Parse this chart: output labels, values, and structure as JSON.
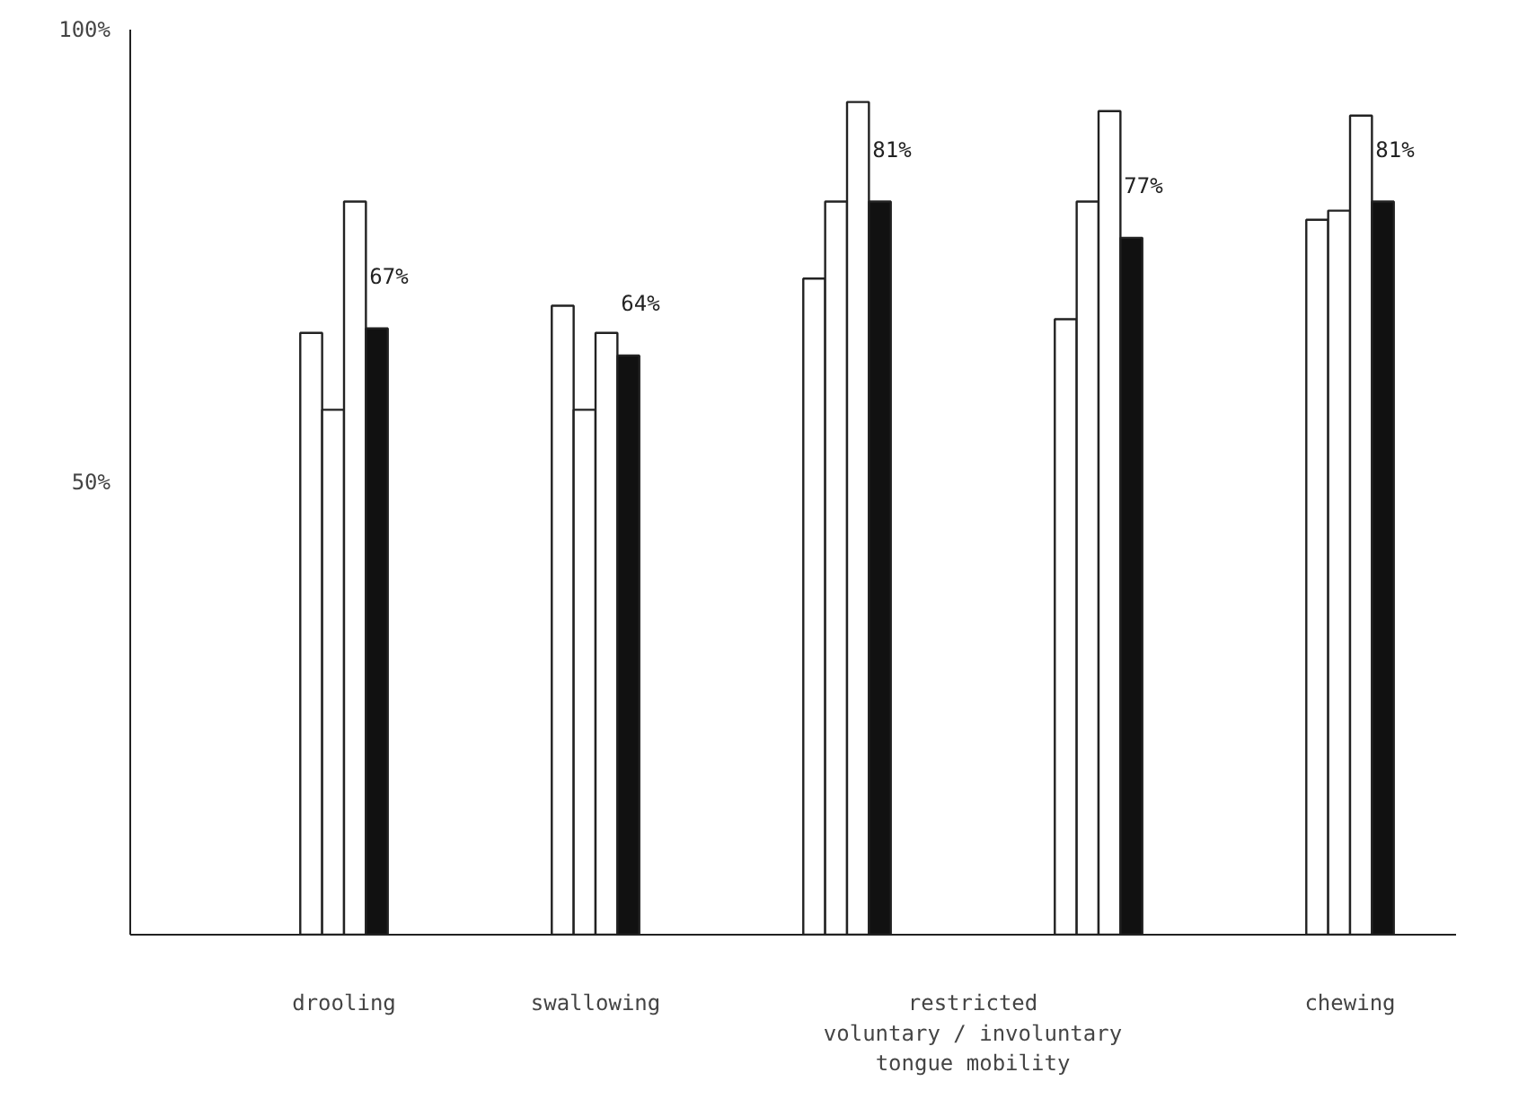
{
  "chart_data": {
    "type": "bar",
    "categories": [
      "drooling",
      "swallowing",
      "restricted\nvoluntary / involuntary\ntongue mobility",
      null,
      "chewing"
    ],
    "series": [
      {
        "color": "#ffffff",
        "values": [
          66.5,
          69.5,
          72.5,
          68,
          79
        ]
      },
      {
        "color": "#ffffff",
        "values": [
          58,
          58,
          81,
          81,
          80
        ]
      },
      {
        "color": "#ffffff",
        "values": [
          81,
          66.5,
          92,
          91,
          90.5
        ]
      },
      {
        "color": "#111111",
        "values": [
          67,
          64,
          81,
          77,
          81
        ],
        "value_labels": [
          "67%",
          "64%",
          "81%",
          "77%",
          "81%"
        ]
      }
    ],
    "ylim": [
      0,
      100
    ],
    "yticks": [
      {
        "value": 50,
        "label": "50%"
      },
      {
        "value": 100,
        "label": "100%"
      }
    ],
    "grid": false
  }
}
